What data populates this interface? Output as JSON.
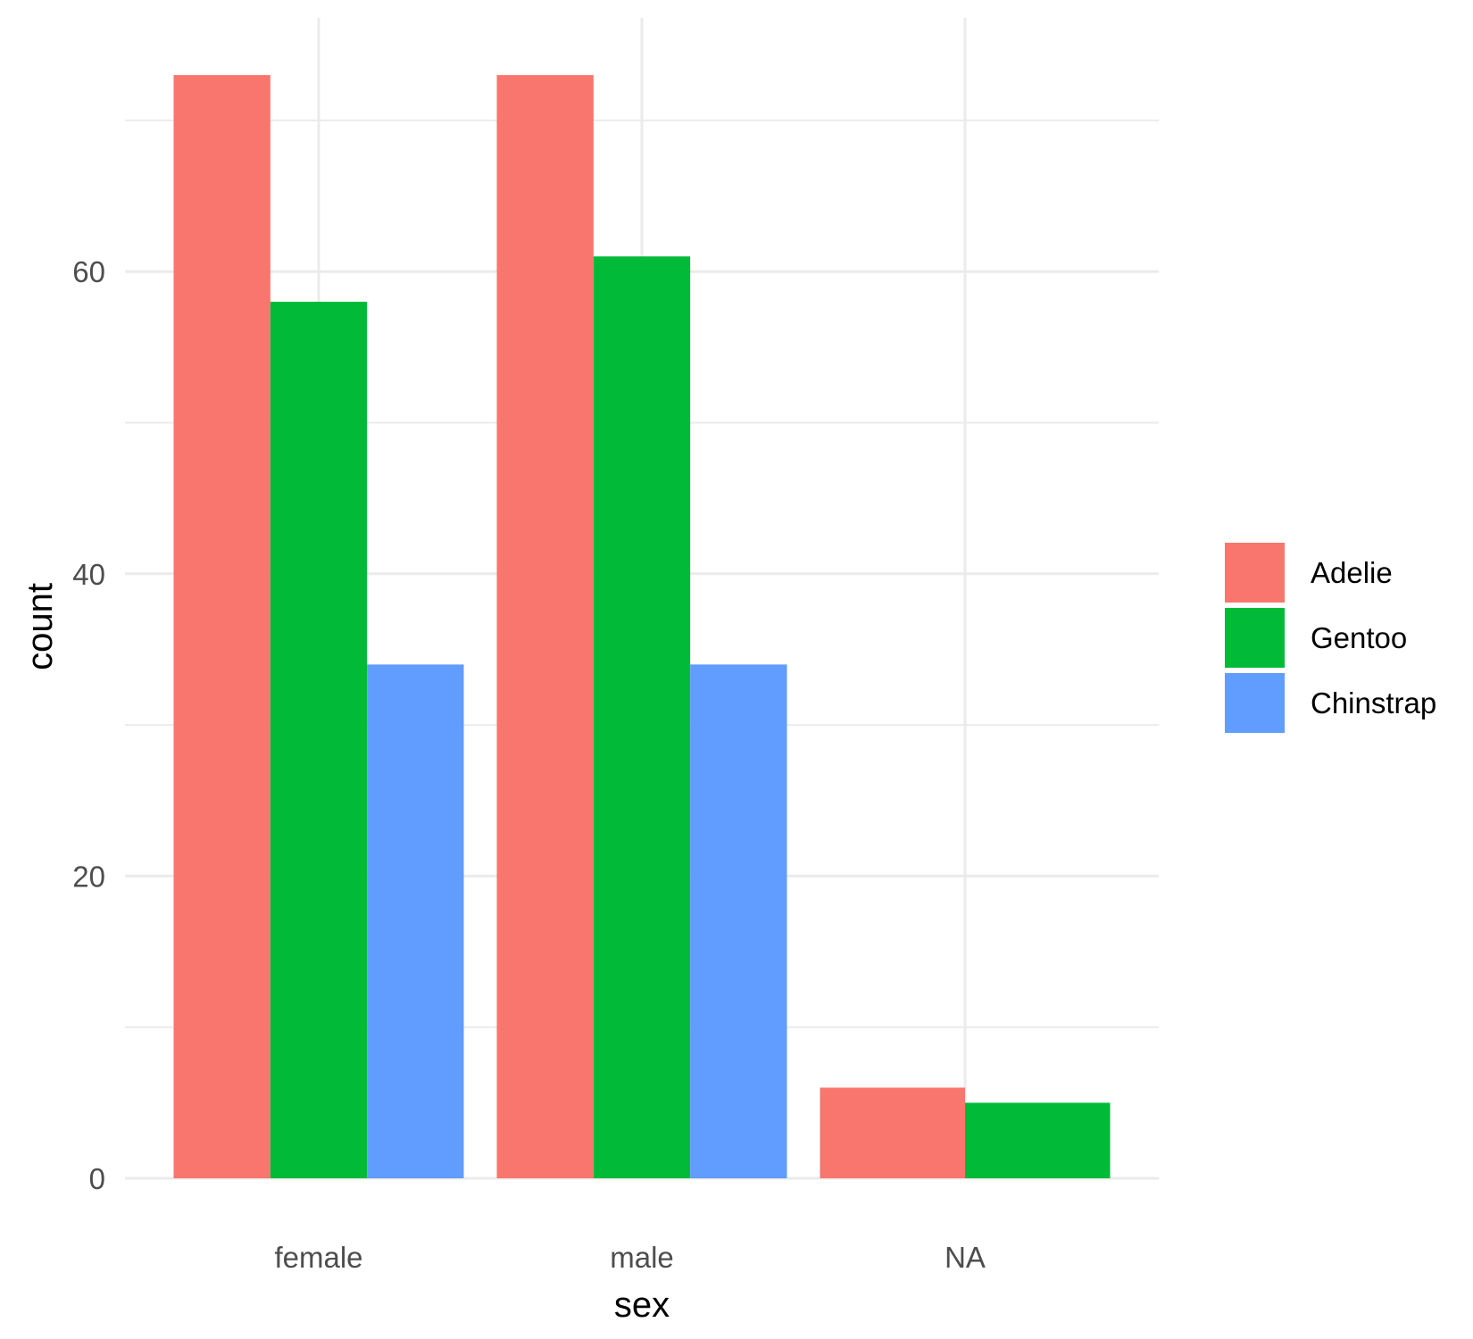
{
  "chart_data": {
    "type": "bar",
    "xlabel": "sex",
    "ylabel": "count",
    "categories": [
      "female",
      "male",
      "NA"
    ],
    "series": [
      {
        "name": "Adelie",
        "color": "#F8766D",
        "values": [
          73,
          73,
          6
        ]
      },
      {
        "name": "Gentoo",
        "color": "#00BA38",
        "values": [
          58,
          61,
          5
        ]
      },
      {
        "name": "Chinstrap",
        "color": "#619CFF",
        "values": [
          34,
          34,
          null
        ]
      }
    ],
    "y_ticks": [
      0,
      20,
      40,
      60
    ],
    "y_tick_labels": [
      "0",
      "20",
      "40",
      "60"
    ],
    "ylim": [
      0,
      76.65
    ],
    "grid": true,
    "legend_position": "right",
    "bar_layout": "dodge"
  }
}
